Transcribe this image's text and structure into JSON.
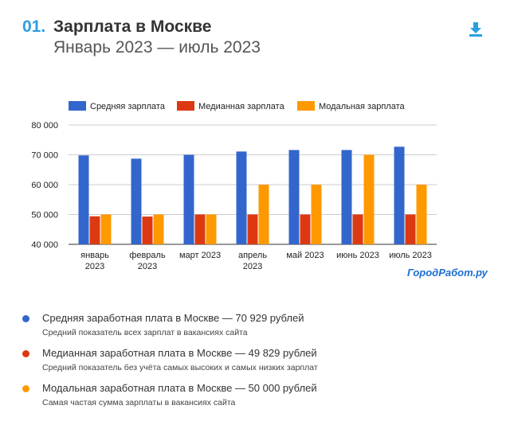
{
  "header": {
    "number": "01.",
    "title": "Зарплата в Москве",
    "subtitle": "Январь 2023 — июль 2023",
    "download_icon": "download-icon"
  },
  "brand": "ГородРабот.ру",
  "colors": {
    "accent": "#2c9fe0",
    "mean": "#3366cc",
    "median": "#dc3912",
    "mode": "#ff9900",
    "brand": "#1c6fd1"
  },
  "chart_data": {
    "type": "bar",
    "title": "",
    "xlabel": "",
    "ylabel": "",
    "ylim": [
      40000,
      80000
    ],
    "yticks": [
      "40 000",
      "50 000",
      "60 000",
      "70 000",
      "80 000"
    ],
    "ytick_values": [
      40000,
      50000,
      60000,
      70000,
      80000
    ],
    "grid": true,
    "legend_position": "top",
    "categories": [
      [
        "январь",
        "2023"
      ],
      [
        "февраль",
        "2023"
      ],
      [
        "март 2023"
      ],
      [
        "апрель",
        "2023"
      ],
      [
        "май 2023"
      ],
      [
        "июнь 2023"
      ],
      [
        "июль 2023"
      ]
    ],
    "series": [
      {
        "name": "Средняя зарплата",
        "color": "#3366cc",
        "values": [
          69800,
          68700,
          70000,
          71100,
          71600,
          71600,
          72700
        ]
      },
      {
        "name": "Медианная зарплата",
        "color": "#dc3912",
        "values": [
          49400,
          49300,
          50000,
          50000,
          50000,
          50000,
          50000
        ]
      },
      {
        "name": "Модальная зарплата",
        "color": "#ff9900",
        "values": [
          50000,
          50000,
          50000,
          60000,
          60000,
          70000,
          60000
        ]
      }
    ]
  },
  "notes": [
    {
      "title": "Средняя заработная плата в Москве — 70 929 рублей",
      "sub": "Средний показатель всех зарплат в вакансиях сайта",
      "color": "#3366cc"
    },
    {
      "title": "Медианная заработная плата в Москве — 49 829 рублей",
      "sub": "Средний показатель без учёта самых высоких и самых низких зарплат",
      "color": "#dc3912"
    },
    {
      "title": "Модальная заработная плата в Москве — 50 000 рублей",
      "sub": "Самая частая сумма зарплаты в вакансиях сайта",
      "color": "#ff9900"
    }
  ]
}
